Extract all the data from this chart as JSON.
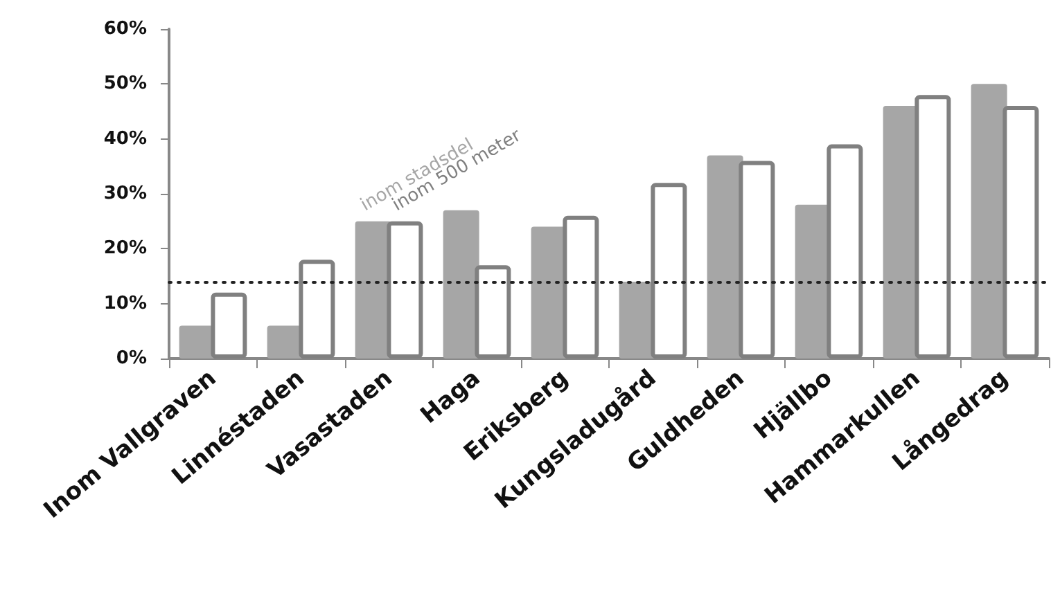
{
  "chart_data": {
    "type": "bar",
    "categories": [
      "Inom Vallgraven",
      "Linnéstaden",
      "Vasastaden",
      "Haga",
      "Eriksberg",
      "Kungsladugård",
      "Guldheden",
      "Hjällbo",
      "Hammarkullen",
      "Långedrag"
    ],
    "series": [
      {
        "name": "inom stadsdel",
        "color": "#a6a6a6",
        "values": [
          6,
          6,
          25,
          27,
          24,
          14,
          37,
          28,
          46,
          50
        ]
      },
      {
        "name": "inom 500 meter",
        "color": "#808080",
        "values": [
          12,
          18,
          25,
          17,
          26,
          32,
          36,
          39,
          48,
          46
        ]
      }
    ],
    "ylim": [
      0,
      60
    ],
    "yticks": [
      {
        "value": 0,
        "label": "0%"
      },
      {
        "value": 10,
        "label": "10%"
      },
      {
        "value": 20,
        "label": "20%"
      },
      {
        "value": 30,
        "label": "30%"
      },
      {
        "value": 40,
        "label": "40%"
      },
      {
        "value": 50,
        "label": "50%"
      },
      {
        "value": 60,
        "label": "60%"
      }
    ],
    "ref_lines": [
      {
        "axis": "y",
        "value": 14,
        "color": "#222222",
        "line_style": "dotted"
      }
    ],
    "grid": false,
    "legend": false
  }
}
